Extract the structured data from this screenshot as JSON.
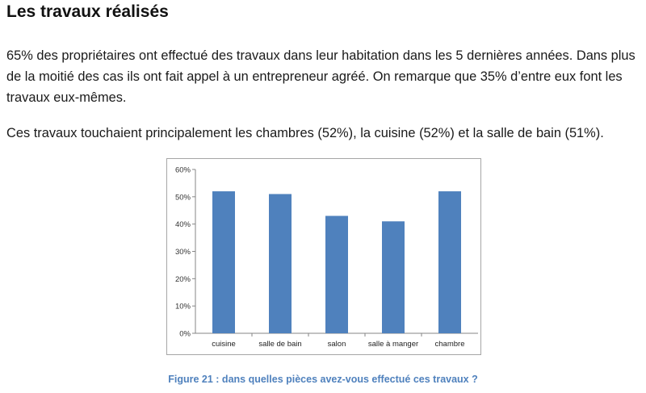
{
  "heading": "Les travaux réalisés",
  "paragraphs": [
    "65% des propriétaires ont effectué des travaux dans leur habitation dans les 5 dernières années. Dans plus de la moitié des cas ils ont fait appel à un entrepreneur agréé. On remarque que 35% d’entre eux font les travaux eux-mêmes.",
    "Ces travaux touchaient principalement les chambres (52%), la cuisine (52%) et la salle de bain (51%)."
  ],
  "caption": "Figure 21 : dans quelles pièces avez-vous effectué ces travaux ?",
  "colors": {
    "bar": "#4f81bd",
    "caption": "#4f81bd",
    "axis": "#868686"
  },
  "chart_data": {
    "type": "bar",
    "categories": [
      "cuisine",
      "salle de bain",
      "salon",
      "salle à manger",
      "chambre"
    ],
    "values": [
      52,
      51,
      43,
      41,
      52
    ],
    "ylim": [
      0,
      60
    ],
    "yticks": [
      0,
      10,
      20,
      30,
      40,
      50,
      60
    ],
    "ytick_labels": [
      "0%",
      "10%",
      "20%",
      "30%",
      "40%",
      "50%",
      "60%"
    ],
    "title": "",
    "xlabel": "",
    "ylabel": "",
    "grid": false,
    "legend": false
  }
}
